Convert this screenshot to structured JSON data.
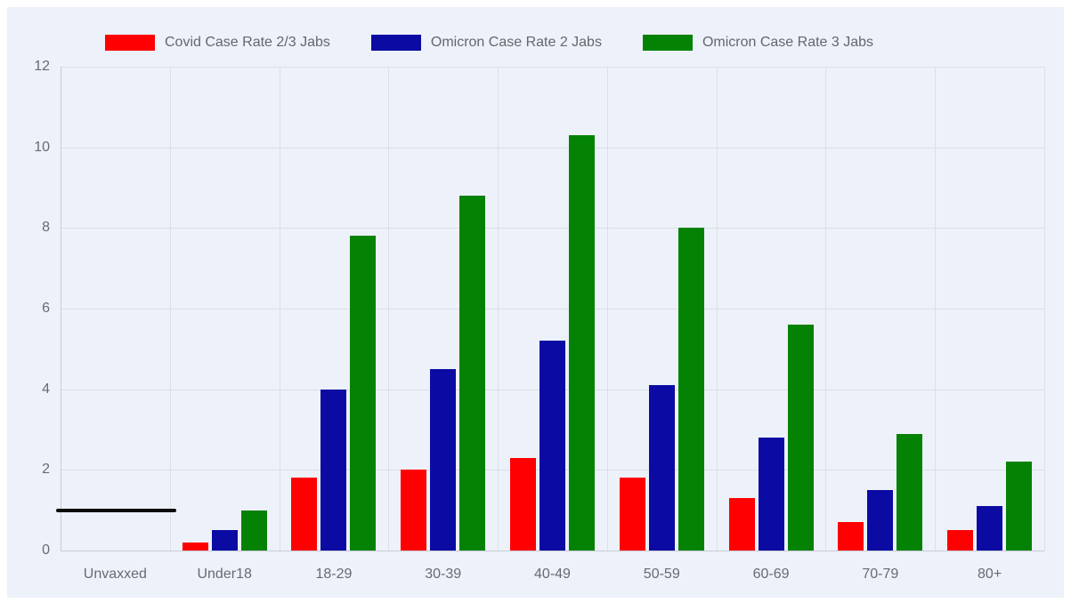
{
  "chart_data": {
    "type": "bar",
    "title": "",
    "xlabel": "",
    "ylabel": "",
    "categories": [
      "Unvaxxed",
      "Under18",
      "18-29",
      "30-39",
      "40-49",
      "50-59",
      "60-69",
      "70-79",
      "80+"
    ],
    "series": [
      {
        "name": "Covid Case Rate 2/3 Jabs",
        "color": "#FE0000",
        "values": [
          null,
          0.2,
          1.8,
          2.0,
          2.3,
          1.8,
          1.3,
          0.7,
          0.5
        ]
      },
      {
        "name": "Omicron Case Rate 2 Jabs",
        "color": "#0B0BA3",
        "values": [
          null,
          0.5,
          4.0,
          4.5,
          5.2,
          4.1,
          2.8,
          1.5,
          1.1
        ]
      },
      {
        "name": "Omicron Case Rate 3 Jabs",
        "color": "#048204",
        "values": [
          null,
          1.0,
          7.8,
          8.8,
          10.3,
          8.0,
          5.6,
          2.9,
          2.2
        ]
      }
    ],
    "reference_line": {
      "category": "Unvaxxed",
      "value": 1,
      "color": "#0A0A0A"
    },
    "y_ticks": [
      0,
      2,
      4,
      6,
      8,
      10,
      12
    ],
    "ylim": [
      0,
      12
    ],
    "grid": true,
    "legend_position": "top",
    "colors": {
      "panel_background": "#EDF1F9",
      "gridline": "#DCDFE6",
      "axis": "#C7CBD3",
      "tick_text": "#666b72",
      "legend_text": "#63676d"
    }
  }
}
